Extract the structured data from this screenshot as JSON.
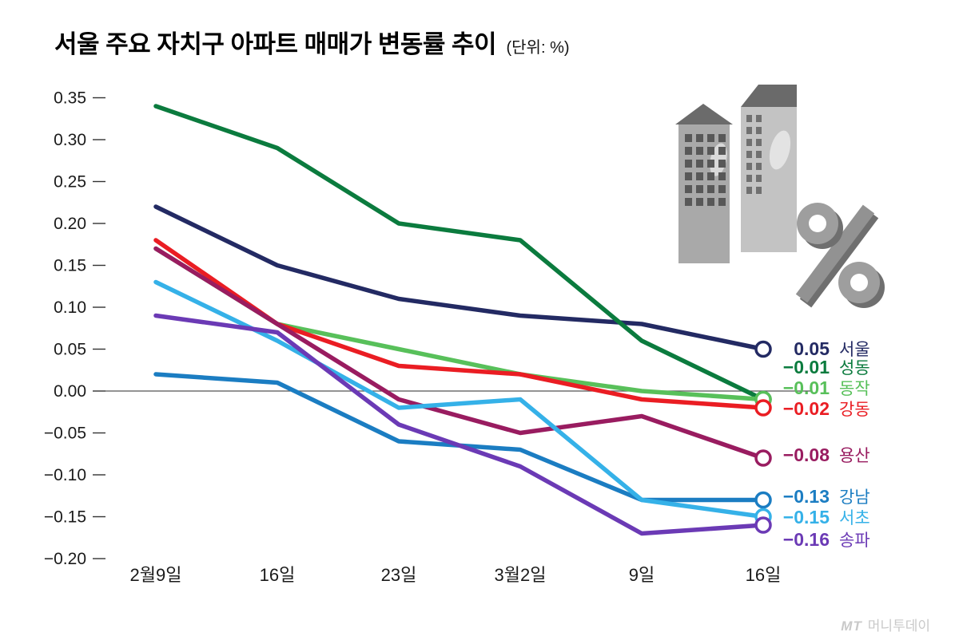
{
  "header": {
    "title": "서울 주요 자치구 아파트 매매가 변동률 추이",
    "unit": "(단위: %)"
  },
  "chart_data": {
    "type": "line",
    "title": "서울 주요 자치구 아파트 매매가 변동률 추이",
    "unit": "%",
    "categories": [
      "2월9일",
      "16일",
      "23일",
      "3월2일",
      "9일",
      "16일"
    ],
    "ylim": [
      -0.2,
      0.35
    ],
    "ytick_step": 0.05,
    "ytick_labels": [
      "0.35",
      "0.30",
      "0.25",
      "0.20",
      "0.15",
      "0.10",
      "0.05",
      "0.00",
      "−0.05",
      "−0.10",
      "−0.15",
      "−0.20"
    ],
    "grid": false,
    "zero_line": true,
    "legend_position": "right-of-line-ends",
    "series": [
      {
        "name": "서울",
        "color": "#232a63",
        "values": [
          0.22,
          0.15,
          0.11,
          0.09,
          0.08,
          0.05
        ],
        "end_label": "0.05"
      },
      {
        "name": "성동",
        "color": "#0b7b3e",
        "values": [
          0.34,
          0.29,
          0.2,
          0.18,
          0.06,
          -0.01
        ],
        "end_label": "−0.01"
      },
      {
        "name": "동작",
        "color": "#58c05a",
        "values": [
          0.17,
          0.08,
          0.05,
          0.02,
          0.0,
          -0.01
        ],
        "end_label": "−0.01"
      },
      {
        "name": "강동",
        "color": "#ea1d23",
        "values": [
          0.18,
          0.08,
          0.03,
          0.02,
          -0.01,
          -0.02
        ],
        "end_label": "−0.02"
      },
      {
        "name": "용산",
        "color": "#991c60",
        "values": [
          0.17,
          0.08,
          -0.01,
          -0.05,
          -0.03,
          -0.08
        ],
        "end_label": "−0.08"
      },
      {
        "name": "강남",
        "color": "#1b7dc2",
        "values": [
          0.02,
          0.01,
          -0.06,
          -0.07,
          -0.13,
          -0.13
        ],
        "end_label": "−0.13"
      },
      {
        "name": "서초",
        "color": "#35b1e8",
        "values": [
          0.13,
          0.06,
          -0.02,
          -0.01,
          -0.13,
          -0.15
        ],
        "end_label": "−0.15"
      },
      {
        "name": "송파",
        "color": "#6b3ab5",
        "values": [
          0.09,
          0.07,
          -0.04,
          -0.09,
          -0.17,
          -0.16
        ],
        "end_label": "−0.16"
      }
    ]
  },
  "decor": {
    "illustration_icon": "gray-buildings-and-percent-icon"
  },
  "watermark": {
    "logo": "MT",
    "name": "머니투데이"
  }
}
